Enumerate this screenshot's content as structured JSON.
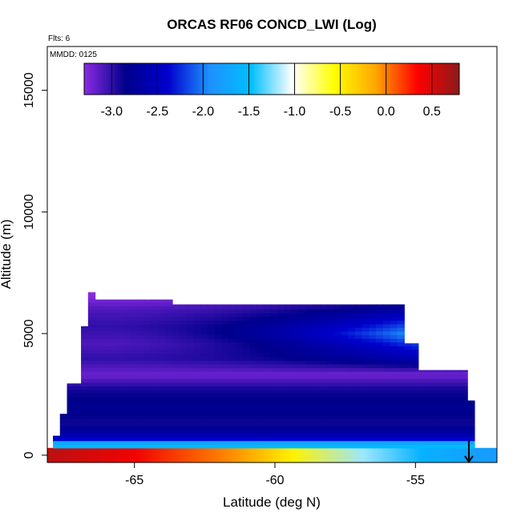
{
  "chart_data": {
    "type": "heatmap",
    "title": "ORCAS RF06 CONCD_LWI (Log)",
    "annotations": {
      "flts": "Flts: 6",
      "mmdd": "MMDD: 0125"
    },
    "xlabel": "Latitude (deg N)",
    "ylabel": "Altitude (m)",
    "xlim": [
      -68.1,
      -52.1
    ],
    "ylim": [
      -300,
      16800
    ],
    "x_ticks": [
      -65,
      -60,
      -55
    ],
    "x_tick_labels": [
      "-65",
      "-60",
      "-55"
    ],
    "y_ticks": [
      0,
      5000,
      10000,
      15000
    ],
    "y_tick_labels": [
      "0",
      "5000",
      "10000",
      "15000"
    ],
    "colorbar": {
      "range": [
        -3.3,
        0.8
      ],
      "ticks": [
        -3.0,
        -2.5,
        -2.0,
        -1.5,
        -1.0,
        -0.5,
        0.0,
        0.5
      ],
      "tick_labels": [
        "-3.0",
        "-2.5",
        "-2.0",
        "-1.5",
        "-1.0",
        "-0.5",
        "0.0",
        "0.5"
      ],
      "colors": [
        "#8a2be2",
        "#00008b",
        "#0000cd",
        "#1e90ff",
        "#00bfff",
        "#ffffff",
        "#ffff00",
        "#ffa500",
        "#ff0000",
        "#8b1a1a"
      ]
    },
    "colorbar_colors": [
      "#8a2be2",
      "#00008b",
      "#0000cd",
      "#1e90ff",
      "#00bfff",
      "#ffffff",
      "#ffff00",
      "#ffa500",
      "#ff0000",
      "#8b1a1a"
    ],
    "surface_layer": {
      "altitude_range": [
        -300,
        300
      ],
      "value_at_lat": [
        [
          -68,
          0.6
        ],
        [
          -65,
          0.4
        ],
        [
          -62,
          0.0
        ],
        [
          -59.5,
          -0.5
        ],
        [
          -57,
          -1.2
        ],
        [
          -55,
          -1.6
        ],
        [
          -53,
          -1.8
        ]
      ]
    },
    "column": {
      "top_altitude_at_lat": [
        [
          -67.9,
          800
        ],
        [
          -67.6,
          1700
        ],
        [
          -67.3,
          2950
        ],
        [
          -67.0,
          4000
        ],
        [
          -66.9,
          5300
        ],
        [
          -66.7,
          6700
        ],
        [
          -66.5,
          6400
        ],
        [
          -63.7,
          6400
        ],
        [
          -63.6,
          6200
        ],
        [
          -55.6,
          6200
        ],
        [
          -55.5,
          4600
        ],
        [
          -55.0,
          4600
        ],
        [
          -54.9,
          3500
        ],
        [
          -53.3,
          3500
        ],
        [
          -53.2,
          2250
        ],
        [
          -53.0,
          2250
        ]
      ],
      "low_layer_values": [
        [
          100,
          -1.4
        ],
        [
          500,
          -1.6
        ],
        [
          700,
          -2.5
        ],
        [
          1300,
          -2.9
        ],
        [
          2000,
          -2.8
        ],
        [
          2700,
          -2.9
        ],
        [
          3300,
          -3.2
        ],
        [
          4000,
          -3.0
        ],
        [
          4600,
          -3.1
        ],
        [
          5300,
          -3.0
        ],
        [
          6000,
          -3.1
        ],
        [
          6600,
          -3.3
        ]
      ],
      "upper_gradient": {
        "west": -3.0,
        "east": -1.6,
        "max_gradient_altitude": 5000
      }
    },
    "arrow_marker": {
      "lat": -53.1,
      "direction": "down"
    }
  }
}
